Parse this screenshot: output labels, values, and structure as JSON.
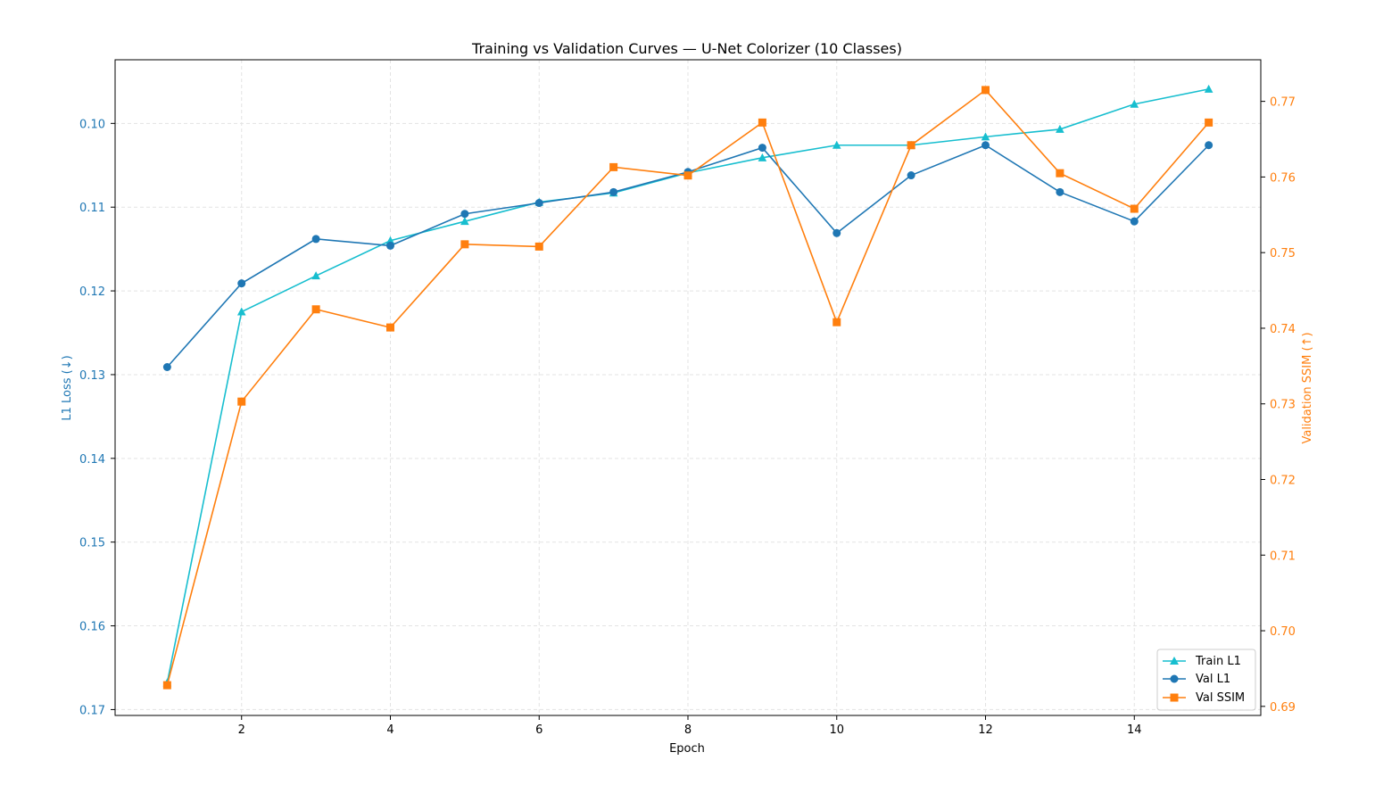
{
  "chart_data": {
    "type": "line",
    "title": "Training vs Validation Curves — U-Net Colorizer (10 Classes)",
    "xlabel": "Epoch",
    "ylabel_left": "L1 Loss (↓)",
    "ylabel_right": "Validation SSIM (↑)",
    "x": [
      1,
      2,
      3,
      4,
      5,
      6,
      7,
      8,
      9,
      10,
      11,
      12,
      13,
      14,
      15
    ],
    "xlim": [
      0.3,
      15.7
    ],
    "xticks": [
      2,
      4,
      6,
      8,
      10,
      12,
      14
    ],
    "ylim_left": [
      0.1707,
      0.0924
    ],
    "yticks_left": [
      0.1,
      0.11,
      0.12,
      0.13,
      0.14,
      0.15,
      0.16,
      0.17
    ],
    "ylim_right": [
      0.6888,
      0.7755
    ],
    "yticks_right": [
      0.69,
      0.7,
      0.71,
      0.72,
      0.73,
      0.74,
      0.75,
      0.76,
      0.77
    ],
    "left_axis_inverted": true,
    "grid": true,
    "legend_position": "bottom-right",
    "colors": {
      "left_axis": "#1f77b4",
      "right_axis": "#ff7f0e"
    },
    "series": [
      {
        "name": "Train L1",
        "axis": "left",
        "color": "#17becf",
        "marker": "triangle",
        "values": [
          0.1668,
          0.1225,
          0.1182,
          0.114,
          0.1117,
          0.1094,
          0.1083,
          0.1059,
          0.1041,
          0.1026,
          0.1026,
          0.1016,
          0.1007,
          0.0977,
          0.0959
        ]
      },
      {
        "name": "Val L1",
        "axis": "left",
        "color": "#1f77b4",
        "marker": "circle",
        "values": [
          0.1291,
          0.1191,
          0.1138,
          0.1146,
          0.1108,
          0.1095,
          0.1082,
          0.1058,
          0.1029,
          0.1131,
          0.1062,
          0.1026,
          0.1082,
          0.1117,
          0.1026
        ]
      },
      {
        "name": "Val SSIM",
        "axis": "right",
        "color": "#ff7f0e",
        "marker": "square",
        "values": [
          0.6928,
          0.7303,
          0.7425,
          0.7401,
          0.7511,
          0.7508,
          0.7613,
          0.7602,
          0.7672,
          0.7408,
          0.7642,
          0.7715,
          0.7605,
          0.7558,
          0.7672
        ]
      }
    ]
  }
}
